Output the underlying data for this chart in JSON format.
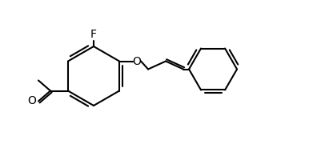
{
  "bg_color": "#ffffff",
  "line_color": "#000000",
  "line_width": 1.5,
  "font_size": 10,
  "F_label": "F",
  "O_label": "O"
}
